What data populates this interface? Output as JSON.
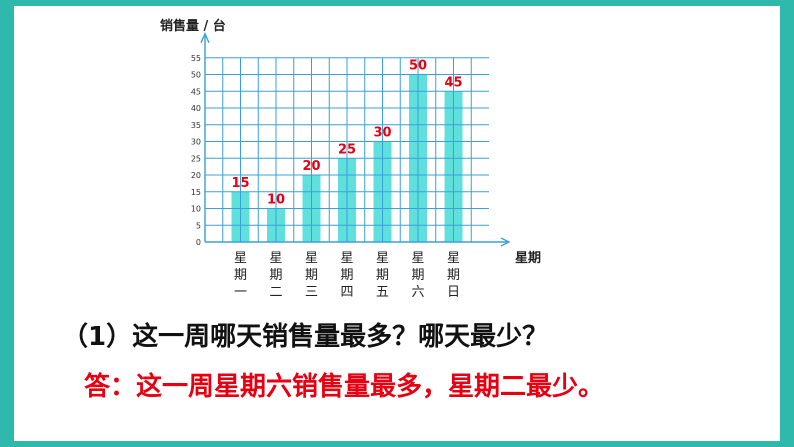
{
  "colors": {
    "frame": "#2fb8ac",
    "grid": "#3aa0d8",
    "bar": "#5fe0dc",
    "bar_label": "#e60012",
    "answer": "#e60012",
    "question": "#111111"
  },
  "chart_data": {
    "type": "bar",
    "ylabel": "销售量 / 台",
    "xlabel": "星期",
    "categories": [
      "星期一",
      "星期二",
      "星期三",
      "星期四",
      "星期五",
      "星期六",
      "星期日"
    ],
    "category_labels": [
      [
        "星",
        "期",
        "一"
      ],
      [
        "星",
        "期",
        "二"
      ],
      [
        "星",
        "期",
        "三"
      ],
      [
        "星",
        "期",
        "四"
      ],
      [
        "星",
        "期",
        "五"
      ],
      [
        "星",
        "期",
        "六"
      ],
      [
        "星",
        "期",
        "日"
      ]
    ],
    "values": [
      15,
      10,
      20,
      25,
      30,
      50,
      45
    ],
    "ylim": [
      0,
      55
    ],
    "yticks": [
      0,
      5,
      10,
      15,
      20,
      25,
      30,
      35,
      40,
      45,
      50,
      55
    ],
    "grid": true
  },
  "question": "（1）这一周哪天销售量最多？哪天最少？",
  "answer": "答：这一周星期六销售量最多，星期二最少。"
}
